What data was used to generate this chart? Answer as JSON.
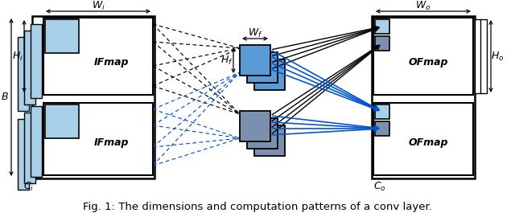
{
  "caption": "Fig. 1: The dimensions and computation patterns of a conv layer.",
  "light_blue": "#A8D0E8",
  "mid_blue": "#5B9BD5",
  "steel_blue": "#7B8FAF",
  "white": "#FFFFFF",
  "black": "#000000",
  "arrow_blue": "#0055CC",
  "bg": "#FFFFFF",
  "wi_label": "$W_i$",
  "hi_label": "$H_i$",
  "b_label": "$B$",
  "ci_label": "$C_i$",
  "wf_label": "$W_f$",
  "hf_label": "$H_f$",
  "wo_label": "$W_o$",
  "ho_label": "$H_o$",
  "co_label": "$C_o$",
  "ifmap_label": "IFmap",
  "ofmap_label": "OFmap"
}
